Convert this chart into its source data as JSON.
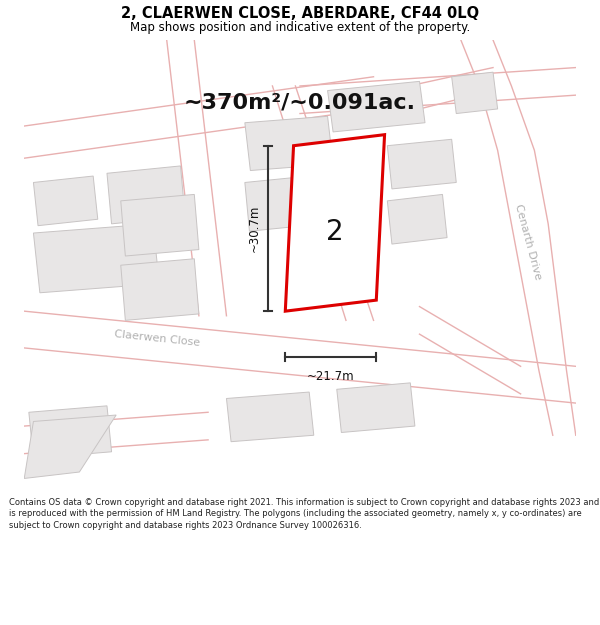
{
  "title": "2, CLAERWEN CLOSE, ABERDARE, CF44 0LQ",
  "subtitle": "Map shows position and indicative extent of the property.",
  "area_label": "~370m²/~0.091ac.",
  "property_number": "2",
  "width_label": "~21.7m",
  "height_label": "~30.7m",
  "footer": "Contains OS data © Crown copyright and database right 2021. This information is subject to Crown copyright and database rights 2023 and is reproduced with the permission of HM Land Registry. The polygons (including the associated geometry, namely x, y co-ordinates) are subject to Crown copyright and database rights 2023 Ordnance Survey 100026316.",
  "bg_color": "#ffffff",
  "map_bg": "#f8f6f6",
  "road_line_color": "#e8b0b0",
  "building_fill": "#e8e6e6",
  "building_edge": "#c8c4c4",
  "property_outline_color": "#dd0000",
  "title_color": "#000000",
  "road_label_color": "#b0b0b0",
  "dim_line_color": "#333333",
  "street1": "Claerwen Close",
  "street2": "Cenarth Drive"
}
